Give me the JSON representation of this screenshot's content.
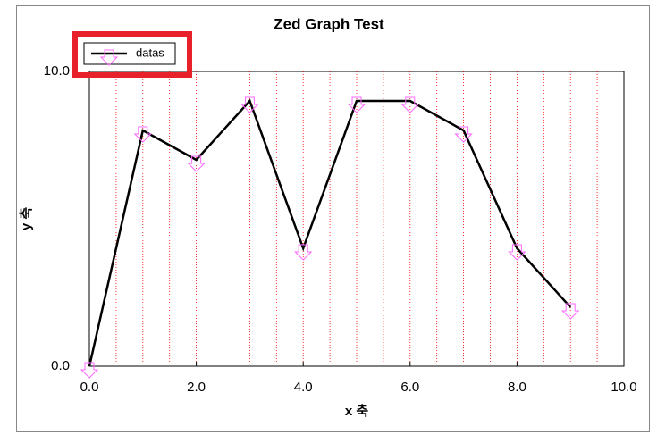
{
  "chart_data": {
    "type": "line",
    "title": "Zed Graph Test",
    "x_label": "x 축",
    "y_label": "y 축",
    "x": [
      0,
      1,
      2,
      3,
      4,
      5,
      6,
      7,
      8,
      9
    ],
    "series": [
      {
        "name": "datas",
        "color": "#000000",
        "marker_color": "#ff66ff",
        "values": [
          0,
          8,
          7,
          9,
          4,
          9,
          9,
          8,
          4,
          2
        ]
      }
    ],
    "xlim": [
      0,
      10
    ],
    "ylim": [
      0,
      10
    ],
    "xticks": [
      {
        "value": 0,
        "label": "0.0"
      },
      {
        "value": 2,
        "label": "2.0"
      },
      {
        "value": 4,
        "label": "4.0"
      },
      {
        "value": 6,
        "label": "6.0"
      },
      {
        "value": 8,
        "label": "8.0"
      },
      {
        "value": 10,
        "label": "10.0"
      }
    ],
    "yticks": [
      {
        "value": 0,
        "label": "0.0"
      },
      {
        "value": 10,
        "label": "10.0"
      }
    ],
    "xgrid": [
      0.5,
      1,
      1.5,
      2,
      2.5,
      3,
      3.5,
      4,
      4.5,
      5,
      5.5,
      6,
      6.5,
      7,
      7.5,
      8,
      8.5,
      9,
      9.5
    ],
    "grid_color": "#ff0000",
    "legend": "top-left"
  }
}
